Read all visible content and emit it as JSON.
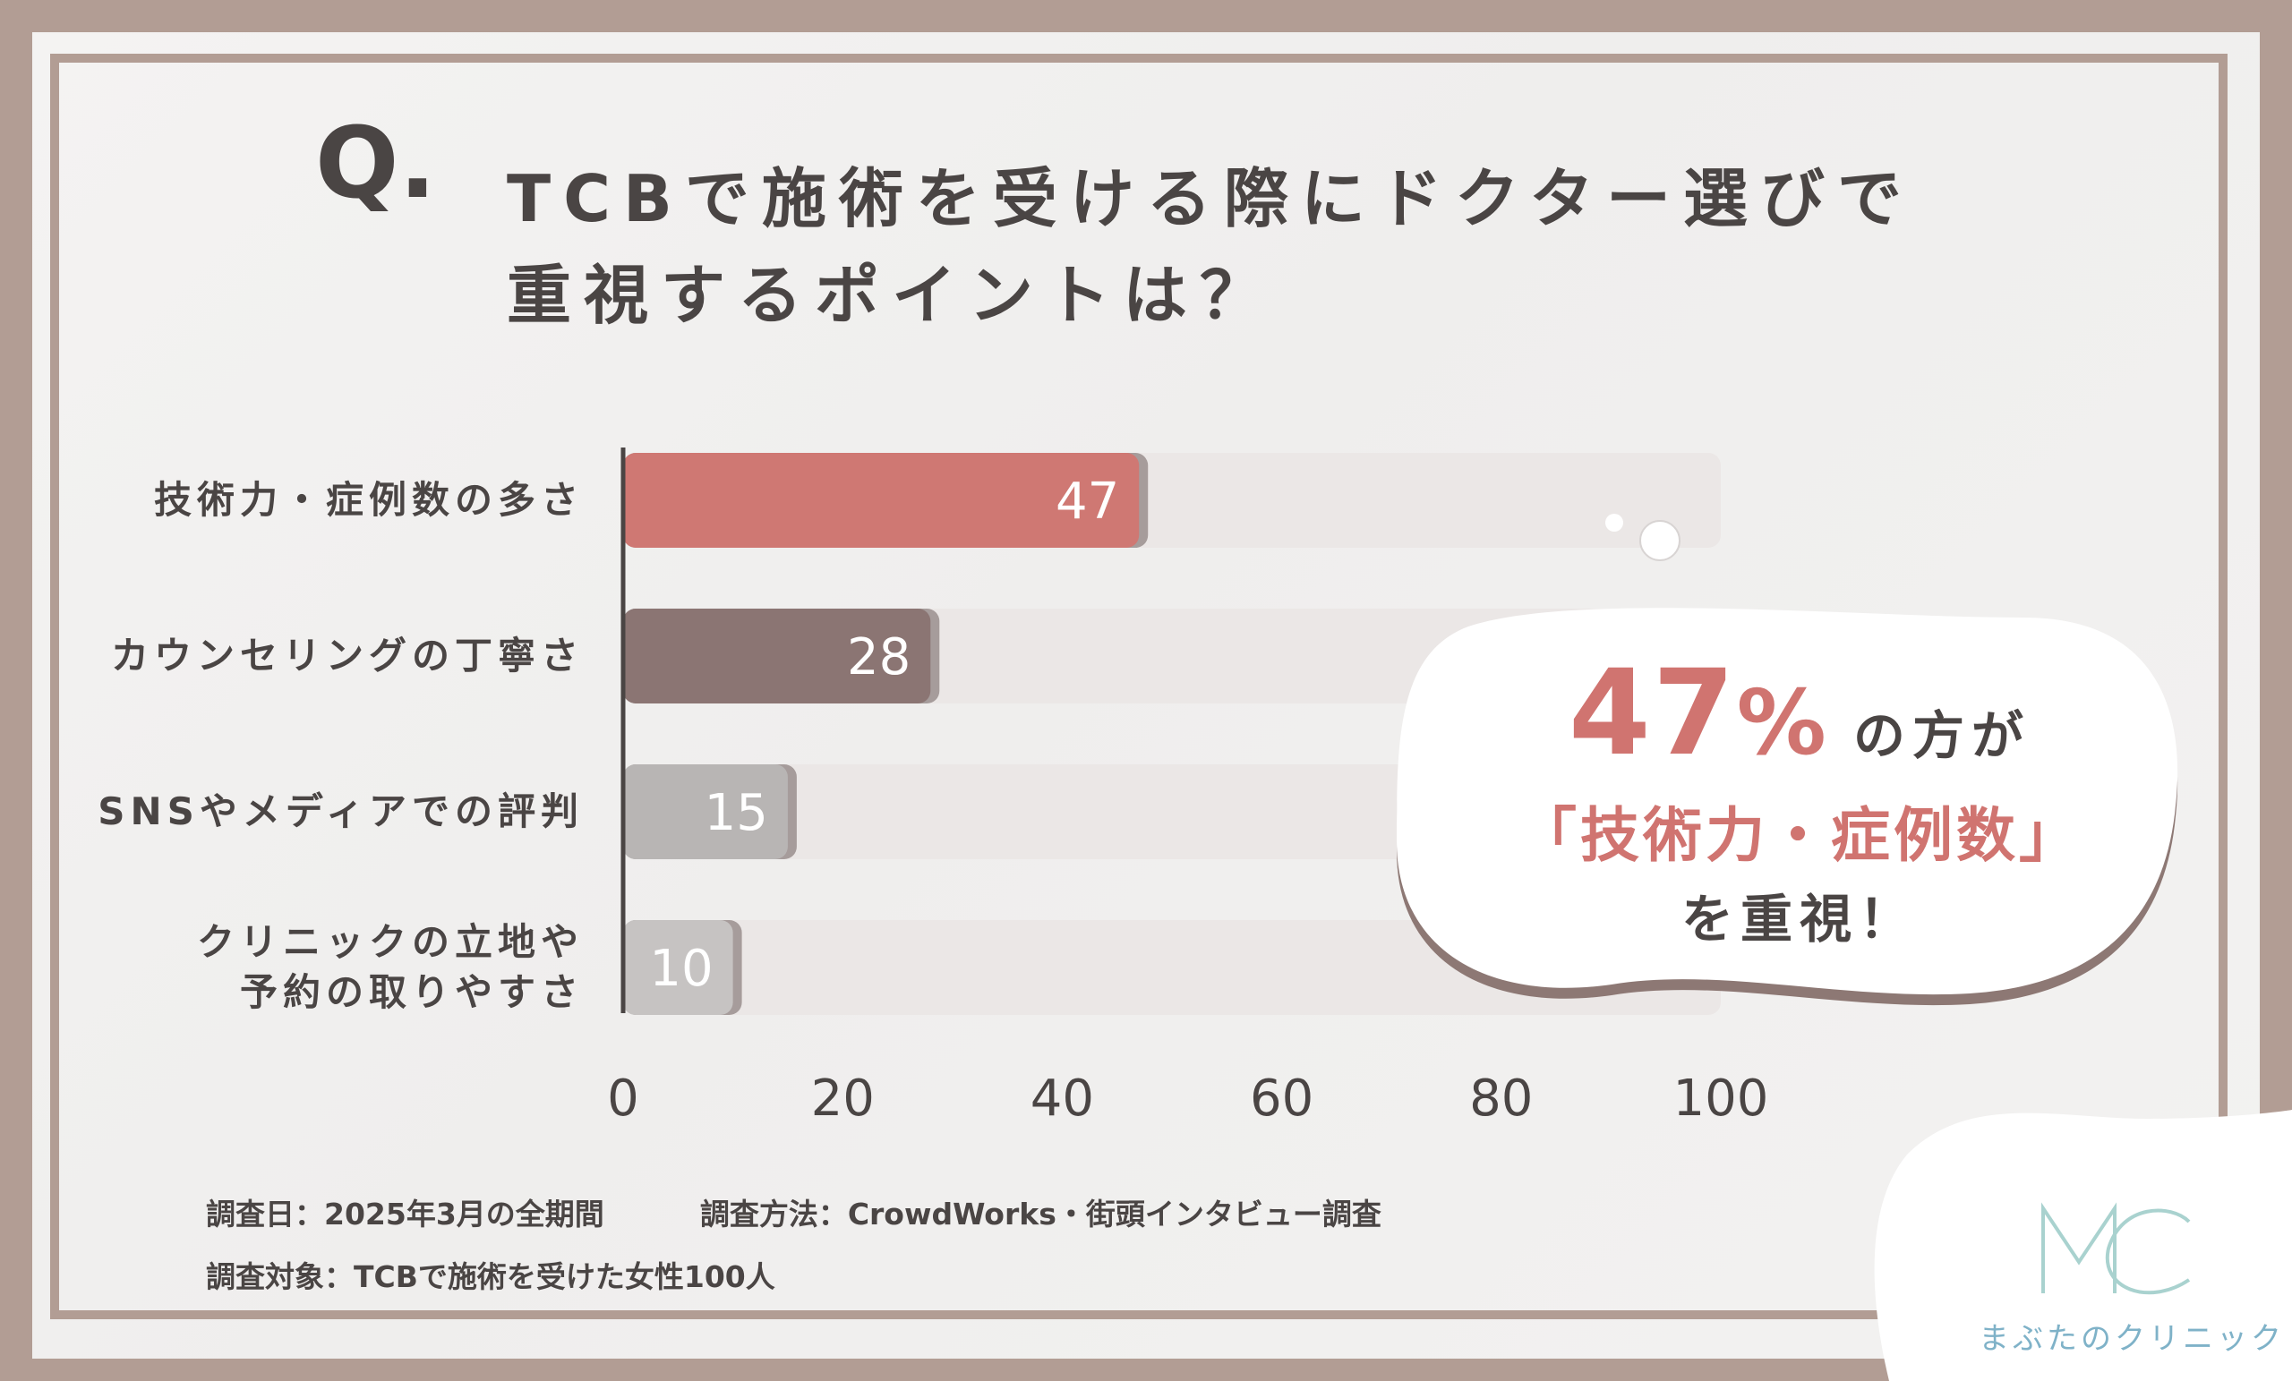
{
  "q_mark": "Q.",
  "title_lines": [
    "TCBで施術を受ける際にドクター選びで",
    "重視するポイントは？"
  ],
  "chart_data": {
    "type": "bar",
    "orientation": "horizontal",
    "categories": [
      [
        "技術力・症例数の多さ"
      ],
      [
        "カウンセリングの丁寧さ"
      ],
      [
        "SNSやメディアでの評判"
      ],
      [
        "クリニックの立地や",
        "予約の取りやすさ"
      ]
    ],
    "values": [
      47,
      28,
      15,
      10
    ],
    "value_labels": [
      "47",
      "28",
      "15",
      "10"
    ],
    "xlim": [
      0,
      100
    ],
    "xticks": [
      "0",
      "20",
      "40",
      "60",
      "80",
      "100"
    ],
    "bar_colors": [
      "#cf7873",
      "#8b7573",
      "#b8b5b4",
      "#c6c3c2"
    ],
    "track_color": "#ebe7e6"
  },
  "callout": {
    "percent": "47",
    "percent_sign": "%",
    "suffix": "の方が",
    "highlight": "「技術力・症例数」",
    "tail": "を重視！"
  },
  "footer": {
    "date": "調査日：2025年3月の全期間",
    "method": "調査方法：CrowdWorks・街頭インタビュー調査",
    "target": "調査対象：TCBで施術を受けた女性100人"
  },
  "logo": {
    "mark": "MC",
    "name": "まぶたのクリニック"
  },
  "colors": {
    "frame": "#b29d94",
    "text": "#4a4544",
    "accent": "#d07470",
    "logo": "#7fb2c8"
  }
}
